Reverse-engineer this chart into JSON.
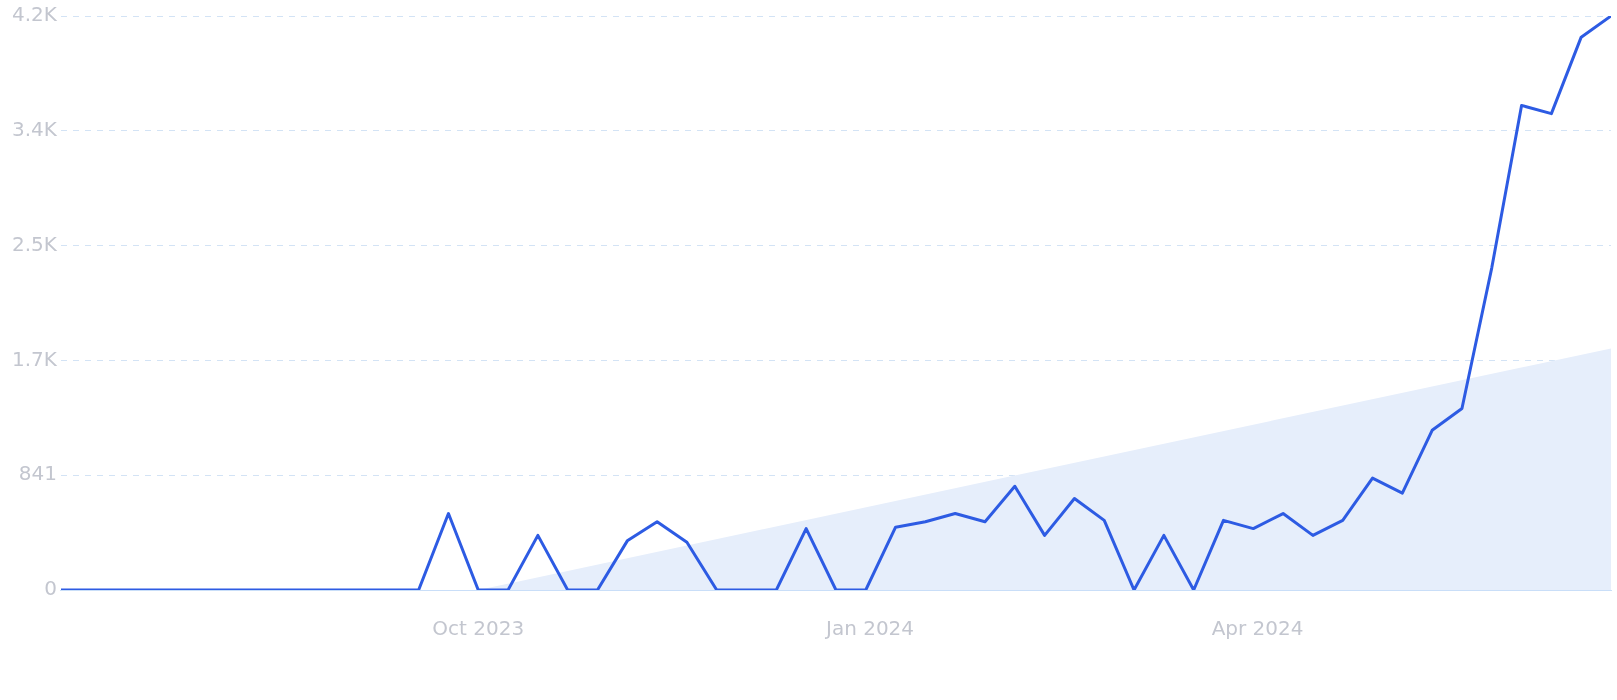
{
  "chart_data": {
    "type": "line",
    "x": [
      "2023-06-25",
      "2023-07-02",
      "2023-07-09",
      "2023-07-16",
      "2023-07-23",
      "2023-07-30",
      "2023-08-06",
      "2023-08-13",
      "2023-08-20",
      "2023-08-27",
      "2023-09-03",
      "2023-09-10",
      "2023-09-17",
      "2023-09-24",
      "2023-10-01",
      "2023-10-08",
      "2023-10-15",
      "2023-10-22",
      "2023-10-29",
      "2023-11-05",
      "2023-11-12",
      "2023-11-19",
      "2023-11-26",
      "2023-12-03",
      "2023-12-10",
      "2023-12-17",
      "2023-12-24",
      "2023-12-31",
      "2024-01-07",
      "2024-01-14",
      "2024-01-21",
      "2024-01-28",
      "2024-02-04",
      "2024-02-11",
      "2024-02-18",
      "2024-02-25",
      "2024-03-03",
      "2024-03-10",
      "2024-03-17",
      "2024-03-24",
      "2024-03-31",
      "2024-04-07",
      "2024-04-14",
      "2024-04-21",
      "2024-04-28",
      "2024-05-05",
      "2024-05-12",
      "2024-05-19",
      "2024-05-26",
      "2024-06-02",
      "2024-06-09",
      "2024-06-16",
      "2024-06-23"
    ],
    "series": [
      {
        "type": "area",
        "color": "#e6eefb",
        "x": [
          "2023-10-01",
          "2024-06-23"
        ],
        "values": [
          0,
          1770
        ]
      },
      {
        "type": "line",
        "color": "#2d5be3",
        "values": [
          0,
          0,
          0,
          0,
          0,
          0,
          0,
          0,
          0,
          0,
          0,
          0,
          0,
          560,
          0,
          0,
          400,
          0,
          0,
          360,
          500,
          350,
          0,
          0,
          0,
          450,
          0,
          0,
          460,
          500,
          560,
          500,
          760,
          400,
          670,
          510,
          0,
          400,
          0,
          510,
          450,
          560,
          400,
          510,
          820,
          710,
          1170,
          1330,
          2360,
          3550,
          3490,
          4050,
          4205
        ]
      }
    ],
    "xlim": [
      "2023-06-25",
      "2024-06-23"
    ],
    "xticks": [
      {
        "value": "2023-10-01",
        "label": "Oct 2023"
      },
      {
        "value": "2024-01-01",
        "label": "Jan 2024"
      },
      {
        "value": "2024-04-01",
        "label": "Apr 2024"
      }
    ],
    "ylim": [
      0,
      4205
    ],
    "yticks": [
      0,
      841,
      {
        "value": 1682,
        "label": "1.7K"
      },
      {
        "value": 2523,
        "label": "2.5K"
      },
      {
        "value": 3364,
        "label": "3.4K"
      },
      {
        "value": 4205,
        "label": "4.2K"
      }
    ],
    "grid": "y",
    "legend": false
  }
}
